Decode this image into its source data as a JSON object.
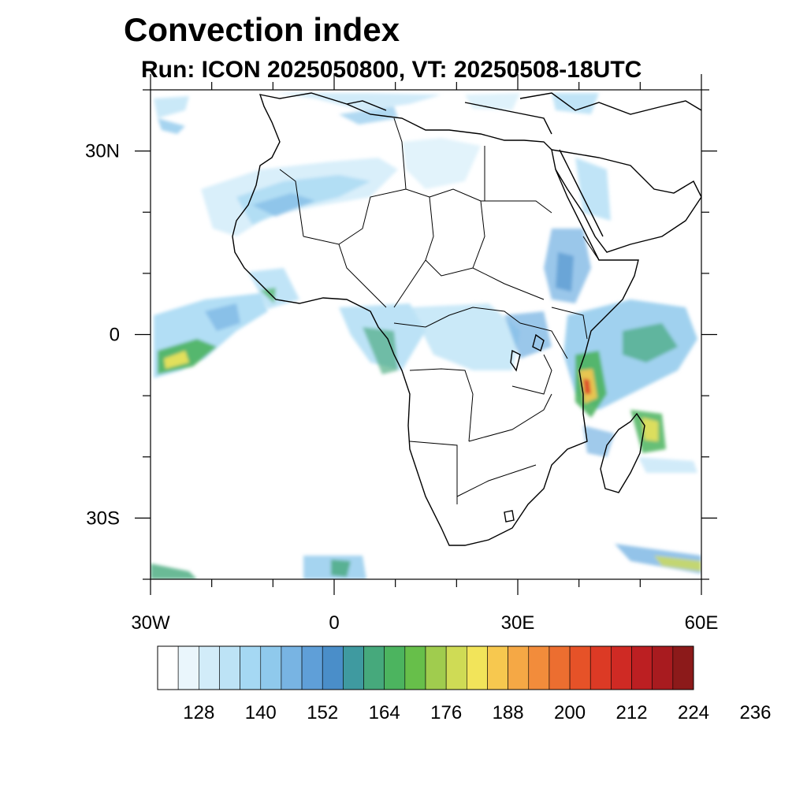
{
  "title": "Convection index",
  "subtitle": "Run: ICON 2025050800,  VT: 20250508-18UTC",
  "lat_ticks": [
    {
      "label": "30N",
      "lat": 30
    },
    {
      "label": "0",
      "lat": 0
    },
    {
      "label": "30S",
      "lat": -30
    }
  ],
  "lon_ticks": [
    {
      "label": "30W",
      "lon": -30
    },
    {
      "label": "0",
      "lon": 0
    },
    {
      "label": "30E",
      "lon": 30
    },
    {
      "label": "60E",
      "lon": 60
    }
  ],
  "colorbar": {
    "colors": [
      "#ffffff",
      "#eaf6fc",
      "#d2ecf9",
      "#bde3f6",
      "#a5d8f3",
      "#8fc9ec",
      "#78b4e3",
      "#5f9fd8",
      "#4a8ec9",
      "#3f9aa0",
      "#46a97c",
      "#4cb45f",
      "#67bf4a",
      "#a0cc4e",
      "#cfdb55",
      "#f2e45a",
      "#f7c84f",
      "#f5a845",
      "#f28c3b",
      "#ec6e30",
      "#e65228",
      "#dc3a25",
      "#cf2a24",
      "#bc1f22",
      "#a81b1f",
      "#8c1a1a"
    ],
    "labels": [
      "128",
      "140",
      "152",
      "164",
      "176",
      "188",
      "200",
      "212",
      "224",
      "236"
    ]
  },
  "map_extent": {
    "lon_min": -30,
    "lon_max": 60,
    "lat_min": -40,
    "lat_max": 40
  }
}
